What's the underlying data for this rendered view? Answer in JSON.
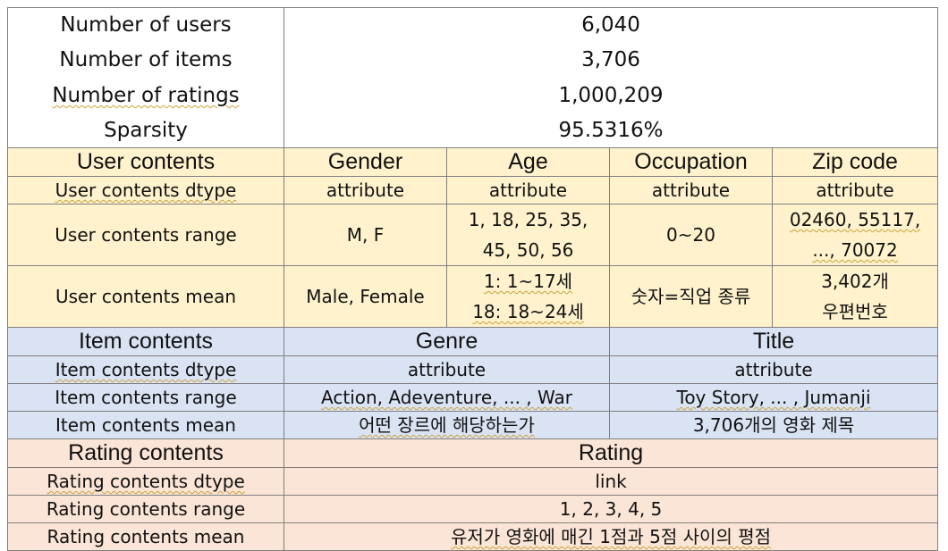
{
  "stats": [
    {
      "label": "Number of users",
      "value": "6,040"
    },
    {
      "label": "Number of items",
      "value": "3,706"
    },
    {
      "label": "Number of ratings",
      "value": "1,000,209"
    },
    {
      "label": "Sparsity",
      "value": "95.5316%"
    }
  ],
  "user": {
    "header": "User contents",
    "columns": [
      "Gender",
      "Age",
      "Occupation",
      "Zip code"
    ],
    "dtype": {
      "label": "User contents dtype",
      "values": [
        "attribute",
        "attribute",
        "attribute",
        "attribute"
      ]
    },
    "range": {
      "label": "User contents range",
      "gender": "M, F",
      "age_line1": "1, 18, 25, 35,",
      "age_line2": "45, 50, 56",
      "occupation": "0~20",
      "zip_line1": "02460, 55117,",
      "zip_line2": "..., 70072"
    },
    "mean": {
      "label": "User contents mean",
      "gender": "Male, Female",
      "age_line1": "1: 1~17세",
      "age_line2": "18: 18~24세",
      "occupation": "숫자=직업 종류",
      "zip_line1": "3,402개",
      "zip_line2": "우편번호"
    }
  },
  "item": {
    "header": "Item contents",
    "columns": [
      "Genre",
      "Title"
    ],
    "dtype": {
      "label": "Item contents dtype",
      "values": [
        "attribute",
        "attribute"
      ]
    },
    "range": {
      "label": "Item contents range",
      "values": [
        "Action, Adeventure, ... , War",
        "Toy Story, ... , Jumanji"
      ]
    },
    "mean": {
      "label": "Item contents mean",
      "values": [
        "어떤 장르에 해당하는가",
        "3,706개의 영화 제목"
      ]
    }
  },
  "rating": {
    "header": "Rating contents",
    "column": "Rating",
    "dtype": {
      "label": "Rating contents dtype",
      "value": "link"
    },
    "range": {
      "label": "Rating contents range",
      "value": "1, 2, 3, 4, 5"
    },
    "mean": {
      "label": "Rating contents mean",
      "value": "유저가 영화에 매긴 1점과 5점 사이의 평점"
    }
  },
  "colors": {
    "user_bg": "#fff2cc",
    "item_bg": "#dae3f3",
    "rating_bg": "#fbe5d6",
    "border": "#7f7f7f"
  }
}
